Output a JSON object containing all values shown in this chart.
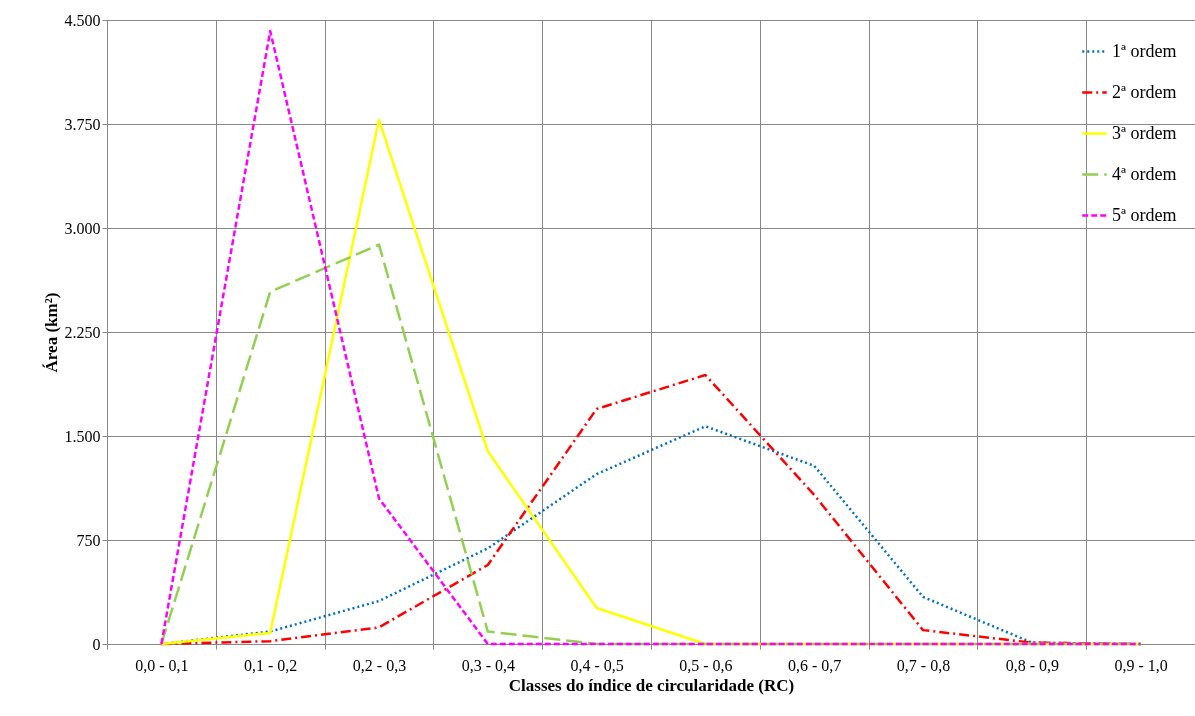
{
  "chart_data": {
    "type": "line",
    "xlabel": "Classes do índice de circularidade (RC)",
    "ylabel": "Área (km²)",
    "categories": [
      "0,0 - 0,1",
      "0,1 - 0,2",
      "0,2 - 0,3",
      "0,3 - 0,4",
      "0,4 - 0,5",
      "0,5 - 0,6",
      "0,6 - 0,7",
      "0,7 - 0,8",
      "0,8 - 0,9",
      "0,9 - 1,0"
    ],
    "ylim": [
      0,
      4500
    ],
    "yticks": [
      0,
      {
        "value": 750,
        "label": "750"
      },
      {
        "value": 1500,
        "label": "1.500"
      },
      {
        "value": 2250,
        "label": "2.250"
      },
      {
        "value": 3000,
        "label": "3.000"
      },
      {
        "value": 3750,
        "label": "3.750"
      },
      {
        "value": 4500,
        "label": "4.500"
      }
    ],
    "grid": true,
    "legend": "top right",
    "marker": "none",
    "series": [
      {
        "name": "1ª ordem",
        "color": "#0070c0",
        "line_style": "dotted",
        "values": [
          0,
          90,
          310,
          690,
          1225,
          1570,
          1285,
          340,
          10,
          0
        ]
      },
      {
        "name": "2ª ordem",
        "color": "#ff0000",
        "line_style": "dashdot",
        "values": [
          0,
          20,
          120,
          570,
          1695,
          1940,
          1075,
          100,
          10,
          0
        ]
      },
      {
        "name": "3ª ordem",
        "color": "#ffff00",
        "line_style": "solid",
        "values": [
          0,
          80,
          3780,
          1390,
          260,
          0,
          0,
          0,
          0,
          0
        ]
      },
      {
        "name": "4ª ordem",
        "color": "#92d050",
        "line_style": "longdash",
        "values": [
          0,
          2540,
          2880,
          90,
          0,
          0,
          0,
          0,
          0,
          0
        ]
      },
      {
        "name": "5ª ordem",
        "color": "#ff00ff",
        "line_style": "dashed",
        "values": [
          0,
          4420,
          1050,
          0,
          0,
          0,
          0,
          0,
          0,
          0
        ]
      }
    ]
  }
}
